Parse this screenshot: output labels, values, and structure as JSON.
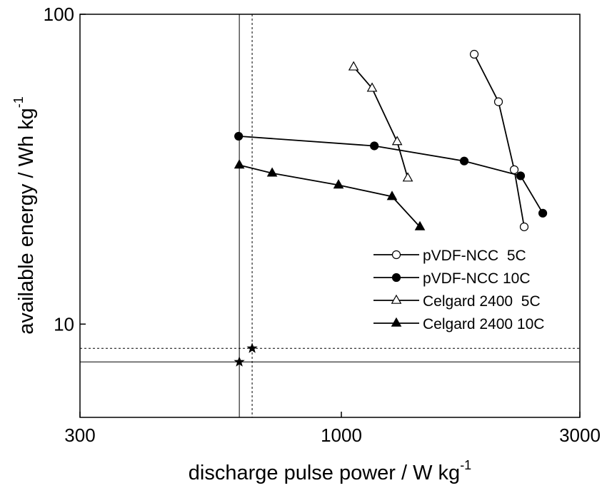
{
  "chart_data": {
    "type": "line",
    "x_label": "discharge pulse power / W kg",
    "x_label_sup": "-1",
    "y_label": "available energy / Wh kg",
    "y_label_sup": "-1",
    "x_log": true,
    "y_log": true,
    "xlim": [
      300,
      3000
    ],
    "xticks": [
      300,
      1000,
      3000
    ],
    "ylim": [
      5,
      100
    ],
    "yticks": [
      10,
      100
    ],
    "legend": "lower right",
    "series": [
      {
        "name": "pVDF-NCC  5C",
        "color": "#000000",
        "marker": "circle",
        "filled": false,
        "x": [
          1844,
          2062,
          2217,
          2321
        ],
        "values": [
          74.3,
          52.2,
          31.5,
          20.6
        ]
      },
      {
        "name": "pVDF-NCC 10C",
        "color": "#000000",
        "marker": "circle",
        "filled": true,
        "x": [
          623,
          1164,
          1761,
          2283,
          2529
        ],
        "values": [
          40.4,
          37.6,
          33.6,
          30.1,
          22.8
        ]
      },
      {
        "name": "Celgard 2400  5C",
        "color": "#000000",
        "marker": "triangle",
        "filled": false,
        "x": [
          1058,
          1152,
          1293,
          1358
        ],
        "values": [
          67.6,
          57.7,
          38.8,
          29.6
        ]
      },
      {
        "name": "Celgard 2400 10C",
        "color": "#000000",
        "marker": "triangle",
        "filled": true,
        "x": [
          625,
          727,
          987,
          1263,
          1436
        ],
        "values": [
          32.6,
          30.7,
          28.1,
          25.8,
          20.6
        ]
      }
    ],
    "reference_points": [
      {
        "x": 625,
        "y": 7.55,
        "dashed": false
      },
      {
        "x": 663,
        "y": 8.35,
        "dashed": true
      }
    ]
  }
}
